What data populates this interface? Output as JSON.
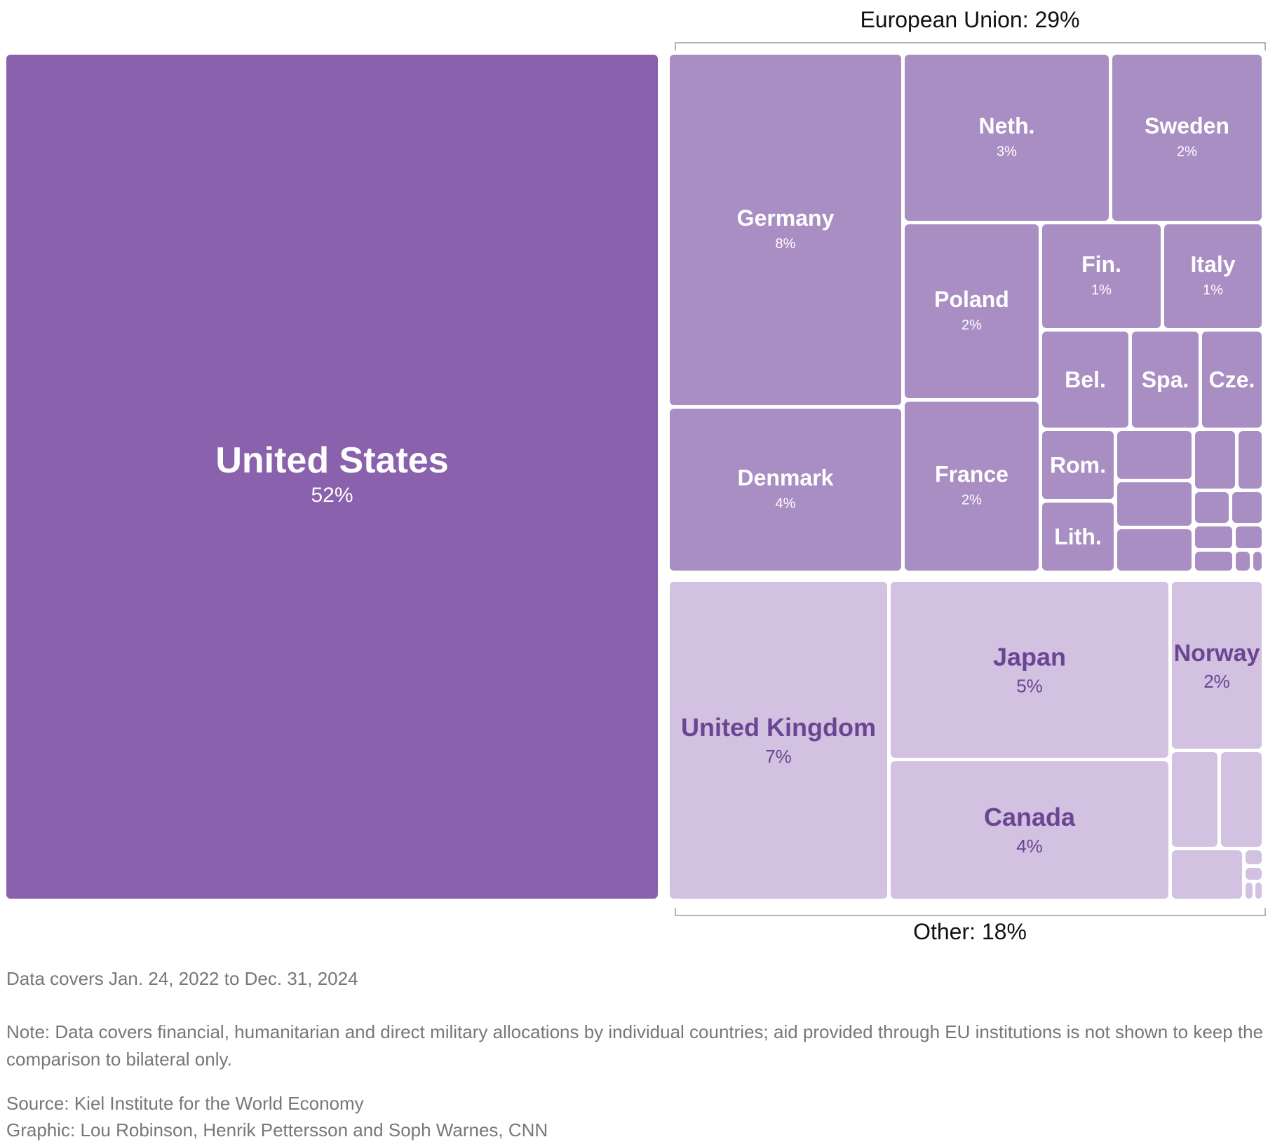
{
  "chart_data": {
    "type": "treemap",
    "colors": {
      "us": "#8a61ad",
      "eu": "#a98ec4",
      "other": "#d2c1e1",
      "dark_text": "#6a4592",
      "white_text": "#ffffff"
    },
    "groups": [
      {
        "name": "European Union: 29%"
      },
      {
        "name": "Other: 18%"
      }
    ],
    "cells": [
      {
        "id": "us",
        "name": "United States",
        "value": "52%",
        "group": "us"
      },
      {
        "id": "germany",
        "name": "Germany",
        "value": "8%",
        "group": "eu"
      },
      {
        "id": "denmark",
        "name": "Denmark",
        "value": "4%",
        "group": "eu"
      },
      {
        "id": "neth",
        "name": "Neth.",
        "value": "3%",
        "group": "eu"
      },
      {
        "id": "sweden",
        "name": "Sweden",
        "value": "2%",
        "group": "eu"
      },
      {
        "id": "poland",
        "name": "Poland",
        "value": "2%",
        "group": "eu"
      },
      {
        "id": "france",
        "name": "France",
        "value": "2%",
        "group": "eu"
      },
      {
        "id": "fin",
        "name": "Fin.",
        "value": "1%",
        "group": "eu"
      },
      {
        "id": "italy",
        "name": "Italy",
        "value": "1%",
        "group": "eu"
      },
      {
        "id": "bel",
        "name": "Bel.",
        "value": "",
        "group": "eu"
      },
      {
        "id": "spa",
        "name": "Spa.",
        "value": "",
        "group": "eu"
      },
      {
        "id": "cze",
        "name": "Cze.",
        "value": "",
        "group": "eu"
      },
      {
        "id": "rom",
        "name": "Rom.",
        "value": "",
        "group": "eu"
      },
      {
        "id": "lith",
        "name": "Lith.",
        "value": "",
        "group": "eu"
      },
      {
        "id": "eu_s1",
        "name": "",
        "value": "",
        "group": "eu"
      },
      {
        "id": "eu_s2",
        "name": "",
        "value": "",
        "group": "eu"
      },
      {
        "id": "eu_s3",
        "name": "",
        "value": "",
        "group": "eu"
      },
      {
        "id": "eu_s4",
        "name": "",
        "value": "",
        "group": "eu"
      },
      {
        "id": "eu_s5",
        "name": "",
        "value": "",
        "group": "eu"
      },
      {
        "id": "eu_s6",
        "name": "",
        "value": "",
        "group": "eu"
      },
      {
        "id": "eu_s7",
        "name": "",
        "value": "",
        "group": "eu"
      },
      {
        "id": "eu_s8",
        "name": "",
        "value": "",
        "group": "eu"
      },
      {
        "id": "eu_s9",
        "name": "",
        "value": "",
        "group": "eu"
      },
      {
        "id": "eu_s10",
        "name": "",
        "value": "",
        "group": "eu"
      },
      {
        "id": "eu_s11",
        "name": "",
        "value": "",
        "group": "eu"
      },
      {
        "id": "eu_s12",
        "name": "",
        "value": "",
        "group": "eu"
      },
      {
        "id": "uk",
        "name": "United Kingdom",
        "value": "7%",
        "group": "other"
      },
      {
        "id": "japan",
        "name": "Japan",
        "value": "5%",
        "group": "other"
      },
      {
        "id": "canada",
        "name": "Canada",
        "value": "4%",
        "group": "other"
      },
      {
        "id": "norway",
        "name": "Norway",
        "value": "2%",
        "group": "other"
      },
      {
        "id": "ot_s1",
        "name": "",
        "value": "",
        "group": "other"
      },
      {
        "id": "ot_s2",
        "name": "",
        "value": "",
        "group": "other"
      },
      {
        "id": "ot_s3",
        "name": "",
        "value": "",
        "group": "other"
      },
      {
        "id": "ot_s4",
        "name": "",
        "value": "",
        "group": "other"
      },
      {
        "id": "ot_s5",
        "name": "",
        "value": "",
        "group": "other"
      },
      {
        "id": "ot_s6",
        "name": "",
        "value": "",
        "group": "other"
      },
      {
        "id": "ot_s7",
        "name": "",
        "value": "",
        "group": "other"
      }
    ]
  },
  "footer": {
    "date_range": "Data covers Jan. 24, 2022 to Dec. 31, 2024",
    "note": "Note: Data covers financial, humanitarian and direct military allocations by individual countries; aid provided through EU institutions is not shown to keep the comparison to bilateral only.",
    "source": "Source: Kiel Institute for the World Economy",
    "credit": "Graphic: Lou Robinson, Henrik Pettersson and Soph Warnes, CNN"
  }
}
